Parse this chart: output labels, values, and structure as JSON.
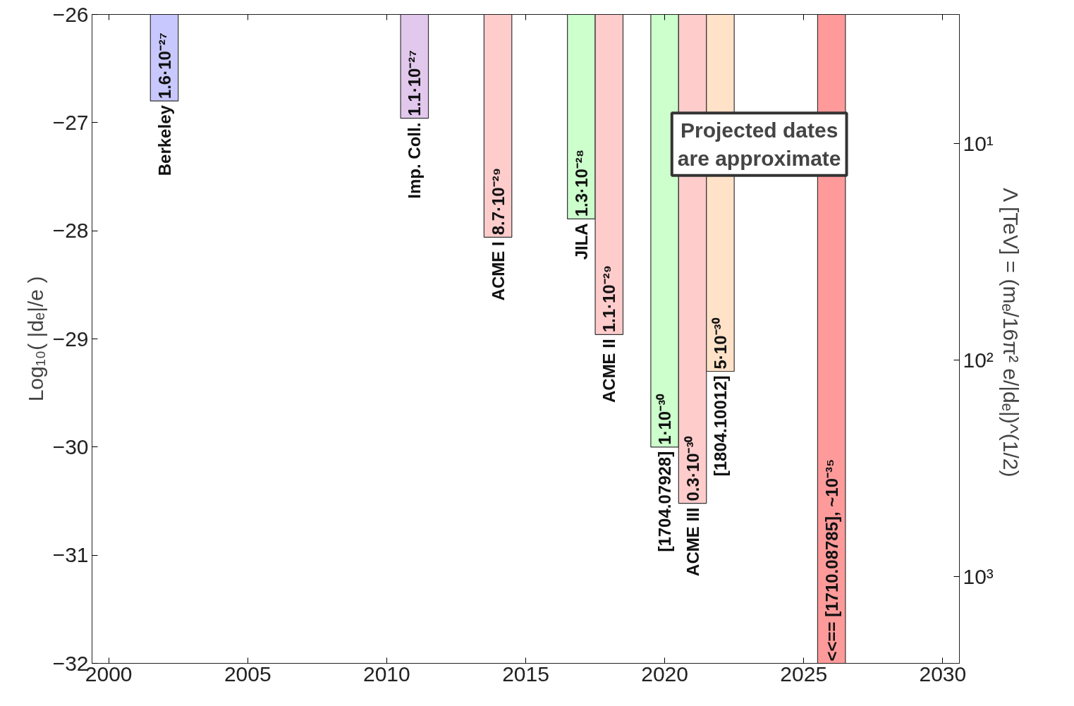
{
  "chart_data": {
    "type": "bar",
    "ylabel": "Log₁₀( |dₑ|/e )",
    "y2label": "Λ [TeV]   = (mₑ/16π² e/|dₑ|)^(1/2)",
    "x": [
      2002,
      2011,
      2014,
      2017,
      2018,
      2020,
      2021,
      2022,
      2026
    ],
    "base": [
      -26,
      -26,
      -26,
      -26,
      -26,
      -26,
      -26,
      -26,
      -26
    ],
    "values": [
      -0.8,
      -0.96,
      -2.06,
      -1.89,
      -2.96,
      -4.0,
      -4.52,
      -3.3,
      -6.0
    ],
    "colors": [
      "#c8c8ff",
      "#e2c8ec",
      "#ffcccc",
      "#ccffcc",
      "#ffcccc",
      "#ccffcc",
      "#ffcccc",
      "#ffe2c8",
      "#ff9a9a"
    ],
    "annotations": [
      {
        "text": "1.6·10⁻²⁷",
        "x": 2002,
        "y": -26.8
      },
      {
        "text": "1.1·10⁻²⁷",
        "x": 2011,
        "y": -26.96
      },
      {
        "text": "8.7·10⁻²⁹",
        "x": 2014,
        "y": -28.06
      },
      {
        "text": "1.3·10⁻²⁸",
        "x": 2017,
        "y": -27.89
      },
      {
        "text": "1.1·10⁻²⁹",
        "x": 2018,
        "y": -28.96
      },
      {
        "text": "1·10⁻³⁰",
        "x": 2020,
        "y": -30.0
      },
      {
        "text": "0.3·10⁻³⁰",
        "x": 2021,
        "y": -30.52
      },
      {
        "text": "5·10⁻³⁰",
        "x": 2022,
        "y": -29.3
      },
      {
        "text": "<<==  [1710.08785], ~10⁻³⁵",
        "x": 2026,
        "y": -32
      },
      {
        "text": "Berkeley",
        "x": 2002,
        "y": -26.8
      },
      {
        "text": "Imp. Coll.",
        "x": 2011,
        "y": -26.96
      },
      {
        "text": "ACME I",
        "x": 2014,
        "y": -28.06
      },
      {
        "text": "JILA",
        "x": 2017,
        "y": -27.89
      },
      {
        "text": "ACME II",
        "x": 2018,
        "y": -28.96
      },
      {
        "text": "[1704.07928]",
        "x": 2020,
        "y": -30.0
      },
      {
        "text": "ACME III",
        "x": 2021,
        "y": -30.52
      },
      {
        "text": "[1804.10012]",
        "x": 2022,
        "y": -29.3
      },
      "Projected dates\nare approximate"
    ],
    "xlim": [
      1999.4,
      2030.6
    ],
    "xticks": [
      2000,
      2005,
      2010,
      2015,
      2020,
      2025,
      2030
    ],
    "ylim": [
      -32,
      -26
    ],
    "yticks": [
      -32,
      -31,
      -30,
      -29,
      -28,
      -27,
      -26
    ],
    "y2lim": [
      2526,
      2.53
    ],
    "y2ticks": [
      {
        "value": 10,
        "label": "10¹"
      },
      {
        "value": 100,
        "label": "10²"
      },
      {
        "value": 1000,
        "label": "10³"
      }
    ],
    "log": "y2",
    "grid": false
  }
}
